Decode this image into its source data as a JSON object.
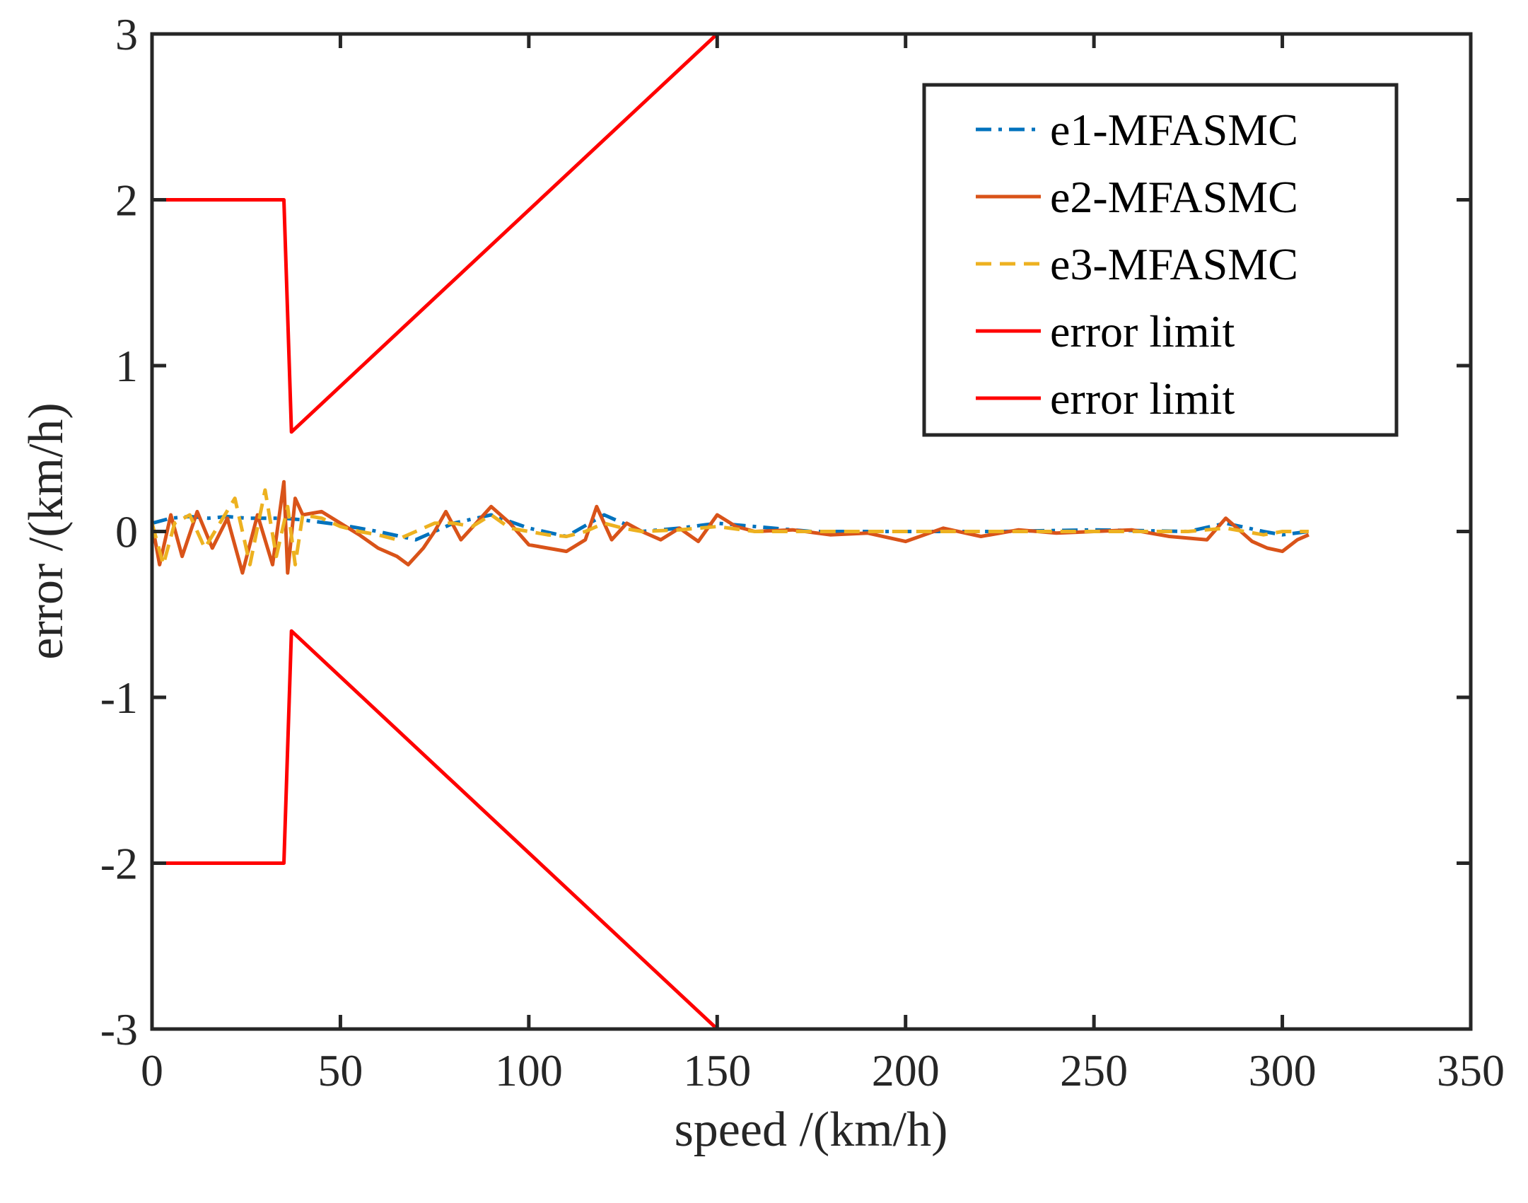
{
  "chart_data": {
    "type": "line",
    "title": "",
    "xlabel": "speed /(km/h)",
    "ylabel": "error /(km/h)",
    "xlim": [
      0,
      350
    ],
    "ylim": [
      -3,
      3
    ],
    "xticks": [
      "0",
      "50",
      "100",
      "150",
      "200",
      "250",
      "300",
      "350"
    ],
    "yticks": [
      "-3",
      "-2",
      "-1",
      "0",
      "1",
      "2",
      "3"
    ],
    "xtick_values": [
      0,
      50,
      100,
      150,
      200,
      250,
      300,
      350
    ],
    "ytick_values": [
      -3,
      -2,
      -1,
      0,
      1,
      2,
      3
    ],
    "grid": false,
    "legend_position": "top-right",
    "series": [
      {
        "name": "e1-MFASMC",
        "color": "#0072BD",
        "style": "dashdot",
        "x": [
          0,
          5,
          10,
          15,
          20,
          25,
          30,
          35,
          40,
          50,
          60,
          70,
          80,
          90,
          100,
          110,
          120,
          130,
          140,
          150,
          175,
          200,
          225,
          250,
          275,
          285,
          295,
          300,
          307
        ],
        "y": [
          0.05,
          0.08,
          0.09,
          0.08,
          0.09,
          0.08,
          0.08,
          0.08,
          0.07,
          0.04,
          0.0,
          -0.05,
          0.05,
          0.1,
          0.02,
          -0.03,
          0.1,
          0.0,
          0.02,
          0.05,
          0.0,
          0.0,
          0.0,
          0.01,
          0.0,
          0.05,
          0.0,
          -0.02,
          0.0
        ]
      },
      {
        "name": "e2-MFASMC",
        "color": "#D95319",
        "style": "solid",
        "x": [
          0,
          2,
          5,
          8,
          12,
          16,
          20,
          24,
          28,
          32,
          35,
          36,
          38,
          40,
          45,
          50,
          55,
          60,
          65,
          68,
          72,
          75,
          78,
          82,
          86,
          90,
          95,
          100,
          105,
          110,
          115,
          118,
          122,
          126,
          130,
          135,
          140,
          145,
          150,
          155,
          160,
          170,
          180,
          190,
          200,
          210,
          220,
          230,
          240,
          250,
          260,
          270,
          280,
          285,
          288,
          292,
          296,
          300,
          304,
          307
        ],
        "y": [
          0.05,
          -0.2,
          0.1,
          -0.15,
          0.12,
          -0.1,
          0.08,
          -0.25,
          0.1,
          -0.2,
          0.3,
          -0.25,
          0.2,
          0.1,
          0.12,
          0.05,
          -0.02,
          -0.1,
          -0.15,
          -0.2,
          -0.1,
          0.0,
          0.12,
          -0.05,
          0.05,
          0.15,
          0.05,
          -0.08,
          -0.1,
          -0.12,
          -0.05,
          0.15,
          -0.05,
          0.05,
          0.0,
          -0.05,
          0.02,
          -0.06,
          0.1,
          0.03,
          0.0,
          0.01,
          -0.02,
          -0.01,
          -0.06,
          0.02,
          -0.03,
          0.01,
          -0.01,
          0.0,
          0.01,
          -0.03,
          -0.05,
          0.08,
          0.02,
          -0.06,
          -0.1,
          -0.12,
          -0.05,
          -0.02
        ]
      },
      {
        "name": "e3-MFASMC",
        "color": "#EDB120",
        "style": "dashed",
        "x": [
          0,
          3,
          6,
          10,
          14,
          18,
          22,
          26,
          30,
          33,
          36,
          38,
          40,
          45,
          50,
          55,
          60,
          65,
          70,
          75,
          80,
          85,
          90,
          95,
          100,
          105,
          110,
          115,
          120,
          125,
          130,
          140,
          150,
          160,
          175,
          200,
          225,
          250,
          275,
          285,
          290,
          295,
          300,
          307
        ],
        "y": [
          0.05,
          -0.2,
          0.05,
          0.1,
          -0.1,
          0.05,
          0.2,
          -0.2,
          0.25,
          -0.15,
          0.15,
          -0.2,
          0.1,
          0.08,
          0.03,
          0.0,
          -0.02,
          -0.05,
          0.0,
          0.05,
          0.05,
          0.03,
          0.1,
          0.02,
          0.0,
          -0.02,
          -0.03,
          0.0,
          0.05,
          0.02,
          0.0,
          0.01,
          0.03,
          0.0,
          0.0,
          0.0,
          0.0,
          0.0,
          0.0,
          0.02,
          0.0,
          -0.02,
          0.0,
          0.0
        ]
      },
      {
        "name": "error limit",
        "color": "#FF0000",
        "style": "solid",
        "x": [
          0,
          35,
          37,
          150
        ],
        "y": [
          2,
          2,
          0.6,
          3
        ]
      },
      {
        "name": "error limit",
        "color": "#FF0000",
        "style": "solid",
        "x": [
          0,
          35,
          37,
          150
        ],
        "y": [
          -2,
          -2,
          -0.6,
          -3
        ]
      }
    ]
  }
}
